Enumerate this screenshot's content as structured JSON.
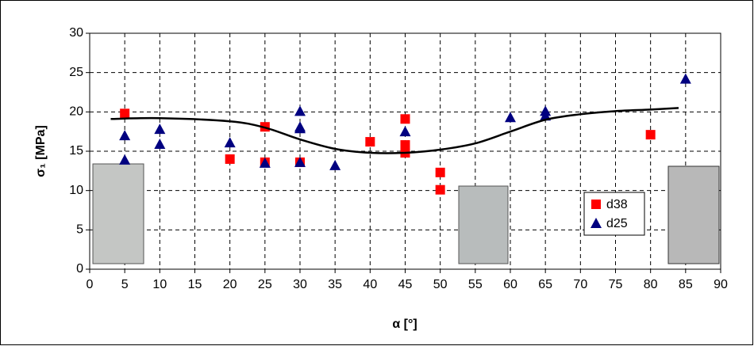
{
  "chart_data": {
    "type": "scatter",
    "xlabel": "α [°]",
    "ylabel": "σ₁ [MPa]",
    "xlim": [
      0,
      90
    ],
    "xticks": [
      0,
      5,
      10,
      15,
      20,
      25,
      30,
      35,
      40,
      45,
      50,
      55,
      60,
      65,
      70,
      75,
      80,
      85,
      90
    ],
    "ylim": [
      0,
      30
    ],
    "yticks": [
      0,
      5,
      10,
      15,
      20,
      25,
      30
    ],
    "grid": true,
    "legend": "right",
    "series": [
      {
        "name": "d38",
        "color": "#ff0000",
        "marker": "square",
        "x": [
          5,
          20,
          25,
          25,
          30,
          40,
          45,
          45,
          45,
          50,
          50,
          80
        ],
        "values": [
          19.8,
          14,
          18.1,
          13.6,
          13.6,
          16.2,
          19.1,
          15.8,
          14.8,
          12.3,
          10.1,
          17.1
        ]
      },
      {
        "name": "d25",
        "color": "#000080",
        "marker": "triangle",
        "x": [
          5,
          5,
          10,
          10,
          20,
          25,
          30,
          30,
          30,
          30,
          35,
          45,
          60,
          65,
          65,
          85
        ],
        "values": [
          17,
          13.9,
          17.8,
          15.9,
          16.1,
          13.5,
          20.1,
          18.1,
          17.9,
          13.6,
          13.2,
          17.5,
          19.3,
          20.1,
          19.5,
          24.2
        ]
      },
      {
        "color": "#000000",
        "marker": "line",
        "x": [
          3,
          10,
          20,
          25,
          30,
          35,
          40,
          45,
          50,
          55,
          60,
          65,
          70,
          75,
          80,
          84
        ],
        "values": [
          19.1,
          19.2,
          18.8,
          18,
          16.5,
          15.3,
          14.8,
          14.8,
          15.2,
          16,
          17.5,
          19,
          19.7,
          20.1,
          20.3,
          20.5
        ]
      }
    ]
  }
}
